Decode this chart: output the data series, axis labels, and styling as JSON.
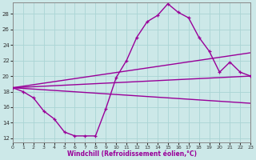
{
  "xlabel": "Windchill (Refroidissement éolien,°C)",
  "background_color": "#cce8e8",
  "grid_color": "#aad4d4",
  "line_color": "#990099",
  "xlim": [
    0,
    23
  ],
  "ylim": [
    11.5,
    29.5
  ],
  "yticks": [
    12,
    14,
    16,
    18,
    20,
    22,
    24,
    26,
    28
  ],
  "xticks": [
    0,
    1,
    2,
    3,
    4,
    5,
    6,
    7,
    8,
    9,
    10,
    11,
    12,
    13,
    14,
    15,
    16,
    17,
    18,
    19,
    20,
    21,
    22,
    23
  ],
  "curve_x": [
    0,
    1,
    2,
    3,
    4,
    5,
    6,
    7,
    8,
    9,
    10,
    11,
    12,
    13,
    14,
    15,
    16,
    17,
    18,
    19,
    20,
    21,
    22,
    23
  ],
  "curve_y": [
    18.5,
    18.0,
    17.2,
    15.5,
    14.5,
    12.8,
    12.3,
    12.3,
    12.3,
    15.8,
    19.8,
    22.0,
    25.0,
    27.0,
    27.8,
    29.3,
    28.2,
    27.5,
    25.0,
    23.2,
    20.5,
    21.8,
    20.5,
    20.0
  ],
  "straight_lines": [
    {
      "x": [
        0,
        23
      ],
      "y": [
        18.5,
        23.0
      ]
    },
    {
      "x": [
        0,
        23
      ],
      "y": [
        18.5,
        20.0
      ]
    },
    {
      "x": [
        0,
        23
      ],
      "y": [
        18.5,
        16.5
      ]
    }
  ]
}
